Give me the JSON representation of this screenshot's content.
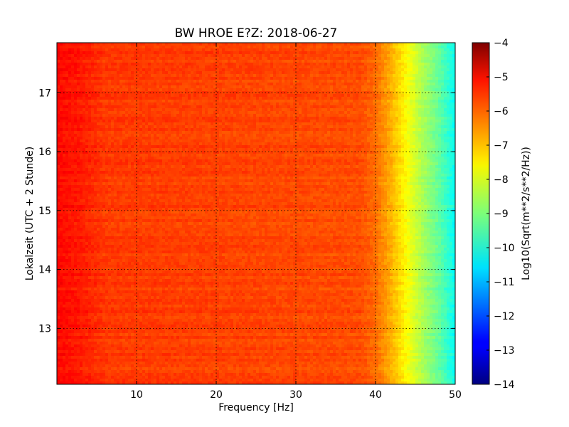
{
  "chart_data": {
    "type": "heatmap",
    "title": "BW HROE E?Z: 2018-06-27",
    "xlabel": "Frequency [Hz]",
    "ylabel": "Lokalzeit (UTC + 2 Stunde)",
    "xlim": [
      0,
      50
    ],
    "ylim": [
      17.85,
      12.05
    ],
    "x_ticks": [
      10,
      20,
      30,
      40,
      50
    ],
    "y_ticks": [
      13,
      14,
      15,
      16,
      17
    ],
    "grid": true,
    "colorbar": {
      "label": "Log10(Sqrt(m**2/s**2/Hz))",
      "range": [
        -14,
        -4
      ],
      "ticks": [
        -4,
        -5,
        -6,
        -7,
        -8,
        -9,
        -10,
        -11,
        -12,
        -13,
        -14
      ],
      "colormap": "jet"
    },
    "level_profile": [
      {
        "freq": 0,
        "value": -5.3
      },
      {
        "freq": 3,
        "value": -5.5
      },
      {
        "freq": 6,
        "value": -5.8
      },
      {
        "freq": 38,
        "value": -6.0
      },
      {
        "freq": 40,
        "value": -6.3
      },
      {
        "freq": 42,
        "value": -7.0
      },
      {
        "freq": 44,
        "value": -7.8
      },
      {
        "freq": 46,
        "value": -8.6
      },
      {
        "freq": 48,
        "value": -9.3
      },
      {
        "freq": 50,
        "value": -10.2
      }
    ],
    "bands": [
      {
        "time": 16.1,
        "freq_range": [
          0,
          14
        ],
        "value": -5.6
      },
      {
        "time": 16.67,
        "freq_range": [
          10,
          50
        ],
        "value": -5.6
      },
      {
        "time": 12.85,
        "freq_range": [
          7,
          14
        ],
        "value": -5.5
      },
      {
        "time": 17.55,
        "freq_range": [
          2,
          15
        ],
        "value": -5.7
      }
    ]
  }
}
